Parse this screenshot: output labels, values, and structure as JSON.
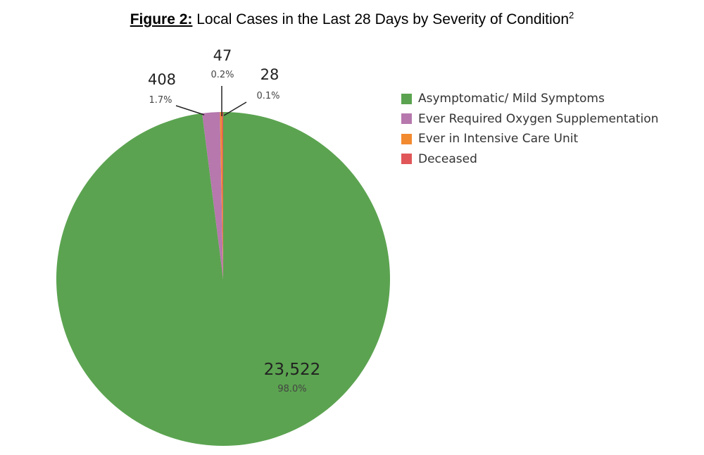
{
  "chart_data": {
    "type": "pie",
    "title_prefix": "Figure 2:",
    "title": "Local Cases in the Last 28 Days by Severity of Condition",
    "title_superscript": "2",
    "legend_position": "right",
    "slices": [
      {
        "label": "Asymptomatic/ Mild Symptoms",
        "value": 23522,
        "value_label": "23,522",
        "percent_label": "98.0%",
        "color": "#5ba350"
      },
      {
        "label": "Ever Required Oxygen Supplementation",
        "value": 408,
        "value_label": "408",
        "percent_label": "1.7%",
        "color": "#b678ad"
      },
      {
        "label": "Ever in Intensive Care Unit",
        "value": 47,
        "value_label": "47",
        "percent_label": "0.2%",
        "color": "#f28a30"
      },
      {
        "label": "Deceased",
        "value": 28,
        "value_label": "28",
        "percent_label": "0.1%",
        "color": "#e15759"
      }
    ]
  }
}
